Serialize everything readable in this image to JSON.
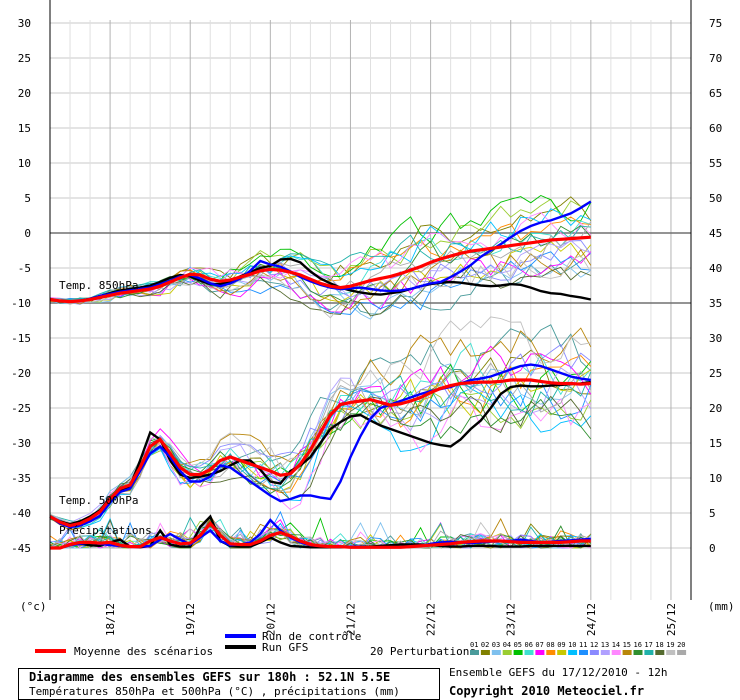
{
  "chart_data": {
    "type": "line",
    "title": "Diagramme des ensembles GEFS sur 180h : 52.1N 5.5E",
    "subtitle": "Températures 850hPa et 500hPa (°C) , précipitations (mm)",
    "left_axis": {
      "unit": "(°c)",
      "ticks": [
        30,
        25,
        20,
        15,
        10,
        5,
        0,
        -5,
        -10,
        -15,
        -20,
        -25,
        -30,
        -35,
        -40,
        -45
      ]
    },
    "right_axis": {
      "unit": "(mm)",
      "ticks": [
        75,
        70,
        65,
        60,
        55,
        50,
        45,
        40,
        35,
        30,
        25,
        20,
        15,
        10,
        5,
        0
      ]
    },
    "x_labels": [
      "18/12",
      "19/12",
      "20/12",
      "21/12",
      "22/12",
      "23/12",
      "24/12",
      "25/12"
    ],
    "x_range": [
      0,
      64
    ],
    "x_label_positions": [
      6,
      14,
      22,
      30,
      38,
      46,
      54,
      62
    ],
    "panel_labels": {
      "t850": "Temp. 850hPa",
      "t500": "Temp. 500hPa",
      "precip": "Précipitations"
    },
    "series": {
      "mean_850": [
        -9.5,
        -9.7,
        -9.8,
        -9.7,
        -9.5,
        -9.2,
        -8.9,
        -8.6,
        -8.4,
        -8.2,
        -8.0,
        -7.6,
        -7.0,
        -6.4,
        -5.9,
        -6.0,
        -6.6,
        -6.9,
        -6.7,
        -6.3,
        -5.9,
        -5.4,
        -5.2,
        -5.3,
        -5.6,
        -6.0,
        -6.6,
        -7.2,
        -7.6,
        -7.8,
        -7.6,
        -7.2,
        -6.8,
        -6.5,
        -6.2,
        -5.8,
        -5.3,
        -4.8,
        -4.2,
        -3.7,
        -3.3,
        -2.9,
        -2.6,
        -2.4,
        -2.2,
        -2.0,
        -1.8,
        -1.6,
        -1.4,
        -1.2,
        -1.0,
        -0.9,
        -0.8,
        -0.7,
        -0.6
      ],
      "gfs_850": [
        -9.5,
        -9.7,
        -9.8,
        -9.7,
        -9.4,
        -9.0,
        -8.6,
        -8.2,
        -8.0,
        -7.8,
        -7.5,
        -7.0,
        -6.4,
        -6.0,
        -6.2,
        -6.8,
        -7.3,
        -7.3,
        -6.9,
        -6.2,
        -5.6,
        -5.0,
        -4.7,
        -3.8,
        -3.7,
        -4.2,
        -5.5,
        -6.5,
        -7.2,
        -7.8,
        -8.2,
        -8.5,
        -8.7,
        -8.8,
        -8.6,
        -8.4,
        -8.0,
        -7.6,
        -7.3,
        -7.1,
        -7.0,
        -7.1,
        -7.3,
        -7.5,
        -7.6,
        -7.5,
        -7.3,
        -7.4,
        -7.8,
        -8.3,
        -8.6,
        -8.7,
        -9.0,
        -9.2,
        -9.5
      ],
      "control_850": [
        -9.5,
        -9.7,
        -9.8,
        -9.7,
        -9.4,
        -9.0,
        -8.7,
        -8.4,
        -8.2,
        -8.0,
        -7.8,
        -7.3,
        -6.8,
        -6.2,
        -6.0,
        -6.5,
        -7.2,
        -7.6,
        -7.2,
        -6.5,
        -5.4,
        -4.0,
        -4.5,
        -4.8,
        -5.5,
        -6.3,
        -6.9,
        -7.4,
        -7.8,
        -8.0,
        -7.9,
        -7.8,
        -8.0,
        -8.2,
        -8.3,
        -8.2,
        -8.0,
        -7.6,
        -7.2,
        -7.0,
        -6.3,
        -5.5,
        -4.6,
        -3.4,
        -2.5,
        -1.6,
        -0.6,
        0.3,
        1.0,
        1.5,
        1.8,
        2.3,
        2.8,
        3.6,
        4.5
      ],
      "mean_500": [
        -40.5,
        -41.3,
        -41.8,
        -41.5,
        -40.8,
        -39.8,
        -38.0,
        -36.5,
        -36.0,
        -33.5,
        -30.5,
        -29.5,
        -31.5,
        -33.5,
        -34.5,
        -34.5,
        -33.8,
        -32.5,
        -32.0,
        -32.5,
        -33.0,
        -33.5,
        -34.0,
        -34.6,
        -34.4,
        -33.0,
        -31.0,
        -28.5,
        -26.0,
        -24.5,
        -24.2,
        -24.0,
        -23.8,
        -24.2,
        -24.6,
        -24.4,
        -24.0,
        -23.5,
        -22.8,
        -22.2,
        -21.8,
        -21.5,
        -21.4,
        -21.3,
        -21.3,
        -21.2,
        -21.0,
        -21.0,
        -21.0,
        -21.2,
        -21.4,
        -21.5,
        -21.5,
        -21.6,
        -21.5
      ],
      "gfs_500": [
        -40.5,
        -41.2,
        -41.6,
        -41.2,
        -40.5,
        -39.6,
        -37.8,
        -36.8,
        -36.2,
        -32.5,
        -28.5,
        -29.5,
        -32.5,
        -34.5,
        -35.0,
        -34.8,
        -34.5,
        -34.0,
        -33.2,
        -32.5,
        -32.5,
        -33.8,
        -35.5,
        -35.8,
        -34.0,
        -33.2,
        -32.0,
        -30.0,
        -28.0,
        -27.0,
        -26.2,
        -26.0,
        -26.8,
        -27.5,
        -28.0,
        -28.5,
        -29.0,
        -29.5,
        -30.0,
        -30.3,
        -30.5,
        -29.5,
        -28.0,
        -26.8,
        -25.0,
        -23.0,
        -22.0,
        -21.8,
        -21.9,
        -21.9,
        -21.8,
        -21.7,
        -21.6,
        -21.5,
        -21.3
      ],
      "control_500": [
        -40.5,
        -41.5,
        -42.0,
        -41.8,
        -41.2,
        -40.4,
        -38.5,
        -37.0,
        -36.5,
        -34.0,
        -31.5,
        -30.5,
        -32.0,
        -34.0,
        -35.5,
        -35.5,
        -34.8,
        -33.2,
        -33.5,
        -34.5,
        -35.5,
        -36.5,
        -37.5,
        -38.3,
        -38.0,
        -37.5,
        -37.5,
        -37.8,
        -38.0,
        -35.5,
        -32.0,
        -29.0,
        -26.5,
        -25.0,
        -24.5,
        -24.0,
        -23.5,
        -23.0,
        -22.6,
        -22.3,
        -22.0,
        -21.5,
        -21.0,
        -20.8,
        -20.5,
        -20.0,
        -19.5,
        -19.0,
        -18.8,
        -19.0,
        -19.5,
        -20.0,
        -20.5,
        -20.8,
        -21.0
      ],
      "mean_precip": [
        0,
        0,
        0.5,
        0.8,
        0.8,
        0.7,
        0.8,
        0.4,
        0.2,
        0.2,
        1.0,
        1.5,
        1.0,
        0.6,
        0.7,
        1.8,
        3.5,
        1.8,
        0.6,
        0.5,
        0.5,
        1.0,
        1.8,
        2.2,
        1.7,
        1.0,
        0.5,
        0.3,
        0.2,
        0.2,
        0.1,
        0.1,
        0.1,
        0.1,
        0.1,
        0.1,
        0.2,
        0.3,
        0.4,
        0.5,
        0.6,
        0.8,
        0.9,
        1.0,
        1.0,
        1.0,
        0.9,
        0.8,
        0.8,
        0.8,
        0.8,
        0.8,
        0.9,
        1.0,
        1.0
      ],
      "gfs_precip": [
        0,
        0,
        0.5,
        0.6,
        0.4,
        0.3,
        0.8,
        1.2,
        0.2,
        0.1,
        0.3,
        2.5,
        0.5,
        0.2,
        0.2,
        3.0,
        4.5,
        1.0,
        0.3,
        0.2,
        0.2,
        0.8,
        1.5,
        0.8,
        0.3,
        0.2,
        0.1,
        0.1,
        0.1,
        0.1,
        0.1,
        0.2,
        0.2,
        0.3,
        0.4,
        0.5,
        0.5,
        0.5,
        0.4,
        0.3,
        0.2,
        0.2,
        0.3,
        0.3,
        0.3,
        0.2,
        0.2,
        0.2,
        0.3,
        0.3,
        0.3,
        0.3,
        0.3,
        0.3,
        0.3
      ],
      "control_precip": [
        0,
        0,
        0.4,
        0.6,
        0.8,
        0.6,
        0.4,
        0.3,
        0.2,
        0.2,
        0.3,
        1.2,
        2.0,
        1.2,
        0.5,
        1.5,
        2.5,
        1.0,
        0.4,
        0.5,
        0.8,
        2.0,
        4.0,
        2.5,
        1.5,
        0.8,
        0.4,
        0.3,
        0.2,
        0.2,
        0.2,
        0.2,
        0.1,
        0.1,
        0.1,
        0.1,
        0.2,
        0.3,
        0.6,
        0.8,
        0.9,
        0.8,
        0.7,
        0.8,
        0.9,
        1.0,
        1.0,
        1.2,
        1.0,
        0.8,
        0.9,
        1.0,
        1.1,
        1.2,
        1.3
      ]
    },
    "perturbation_colors": [
      "#4a9b9b",
      "#808000",
      "#7ec0ee",
      "#9acd32",
      "#00c000",
      "#40e0d0",
      "#ff00ff",
      "#ff8c00",
      "#c8c800",
      "#00bfff",
      "#1e90ff",
      "#8a8aff",
      "#b0a0ff",
      "#ff88ff",
      "#b8860b",
      "#2f8f2f",
      "#20b2aa",
      "#556b2f",
      "#c0c0c0",
      "#a9a9a9"
    ]
  },
  "legend": {
    "mean": "Moyenne des scénarios",
    "control": "Run de contrôle",
    "gfs": "Run GFS",
    "perturbations": "20 Perturbations",
    "perturbation_ids": [
      "01",
      "02",
      "03",
      "04",
      "05",
      "06",
      "07",
      "08",
      "09",
      "10",
      "11",
      "12",
      "13",
      "14",
      "15",
      "16",
      "17",
      "18",
      "19",
      "20"
    ],
    "mean_color": "#ff0000",
    "control_color": "#0000ff",
    "gfs_color": "#000000"
  },
  "footer": {
    "title": "Diagramme des ensembles GEFS sur 180h : 52.1N 5.5E",
    "subtitle": "Températures 850hPa et 500hPa (°C) , précipitations (mm)",
    "ensemble": "Ensemble GEFS du 17/12/2010 - 12h",
    "copyright": "Copyright 2010 Meteociel.fr"
  }
}
